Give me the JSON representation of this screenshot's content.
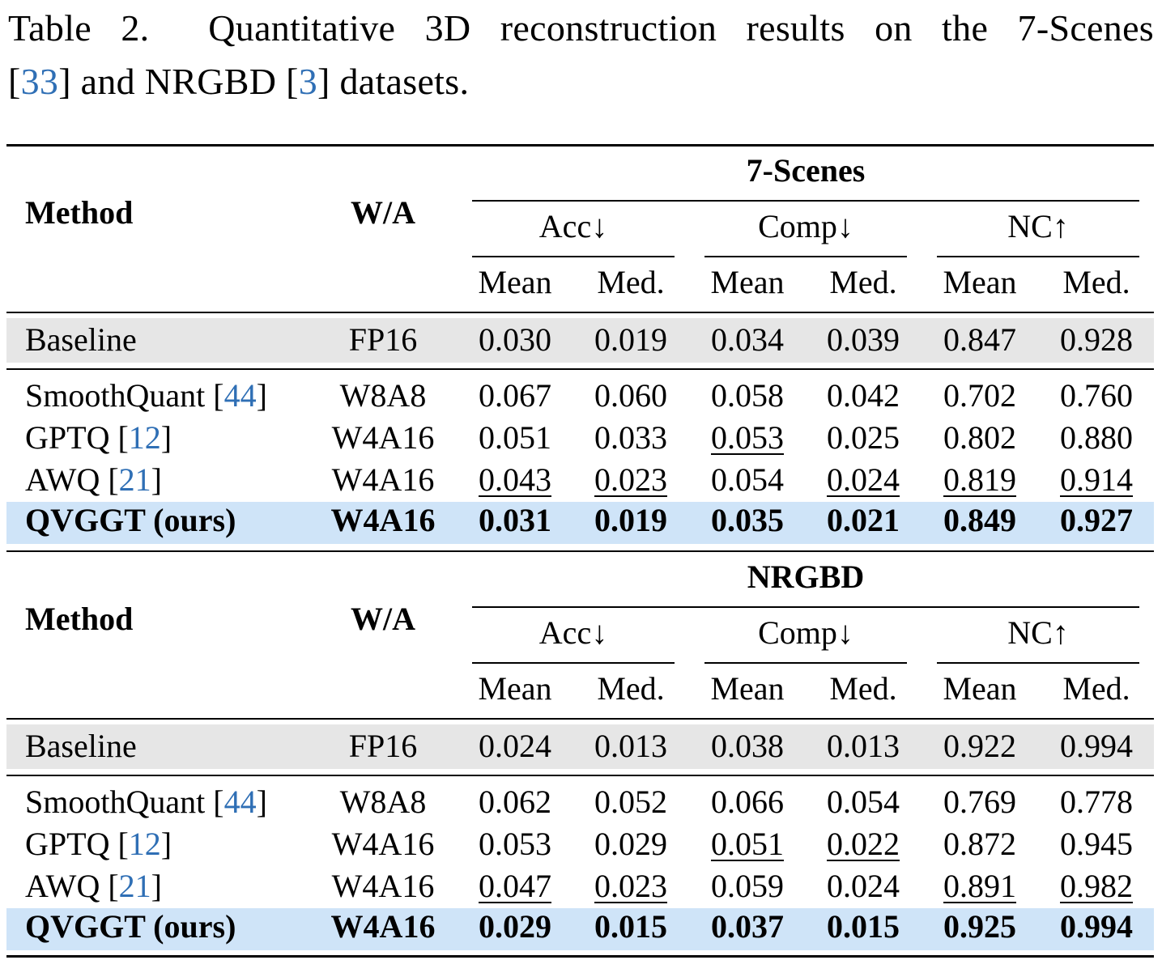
{
  "caption": {
    "prefix": "Table 2.",
    "line1": "Quantitative 3D reconstruction results on the 7-Scenes",
    "ref_a": "33",
    "mid": "and NRGBD",
    "ref_b": "3",
    "end": "datasets."
  },
  "header": {
    "method": "Method",
    "wa": "W/A",
    "acc": "Acc↓",
    "comp": "Comp↓",
    "nc": "NC↑",
    "mean": "Mean",
    "med": "Med."
  },
  "sections": [
    {
      "dataset": "7-Scenes",
      "baseline": {
        "method": "Baseline",
        "wa": "FP16",
        "values": [
          "0.030",
          "0.019",
          "0.034",
          "0.039",
          "0.847",
          "0.928"
        ]
      },
      "rows": [
        {
          "method": "SmoothQuant",
          "ref": "44",
          "wa": "W8A8",
          "values": [
            "0.067",
            "0.060",
            "0.058",
            "0.042",
            "0.702",
            "0.760"
          ],
          "underline": []
        },
        {
          "method": "GPTQ",
          "ref": "12",
          "wa": "W4A16",
          "values": [
            "0.051",
            "0.033",
            "0.053",
            "0.025",
            "0.802",
            "0.880"
          ],
          "underline": [
            2
          ]
        },
        {
          "method": "AWQ",
          "ref": "21",
          "wa": "W4A16",
          "values": [
            "0.043",
            "0.023",
            "0.054",
            "0.024",
            "0.819",
            "0.914"
          ],
          "underline": [
            0,
            1,
            3,
            4,
            5
          ]
        }
      ],
      "ours": {
        "method": "QVGGT (ours)",
        "wa": "W4A16",
        "values": [
          "0.031",
          "0.019",
          "0.035",
          "0.021",
          "0.849",
          "0.927"
        ]
      }
    },
    {
      "dataset": "NRGBD",
      "baseline": {
        "method": "Baseline",
        "wa": "FP16",
        "values": [
          "0.024",
          "0.013",
          "0.038",
          "0.013",
          "0.922",
          "0.994"
        ]
      },
      "rows": [
        {
          "method": "SmoothQuant",
          "ref": "44",
          "wa": "W8A8",
          "values": [
            "0.062",
            "0.052",
            "0.066",
            "0.054",
            "0.769",
            "0.778"
          ],
          "underline": []
        },
        {
          "method": "GPTQ",
          "ref": "12",
          "wa": "W4A16",
          "values": [
            "0.053",
            "0.029",
            "0.051",
            "0.022",
            "0.872",
            "0.945"
          ],
          "underline": [
            2,
            3
          ]
        },
        {
          "method": "AWQ",
          "ref": "21",
          "wa": "W4A16",
          "values": [
            "0.047",
            "0.023",
            "0.059",
            "0.024",
            "0.891",
            "0.982"
          ],
          "underline": [
            0,
            1,
            4,
            5
          ]
        }
      ],
      "ours": {
        "method": "QVGGT (ours)",
        "wa": "W4A16",
        "values": [
          "0.029",
          "0.015",
          "0.037",
          "0.015",
          "0.925",
          "0.994"
        ]
      }
    }
  ]
}
